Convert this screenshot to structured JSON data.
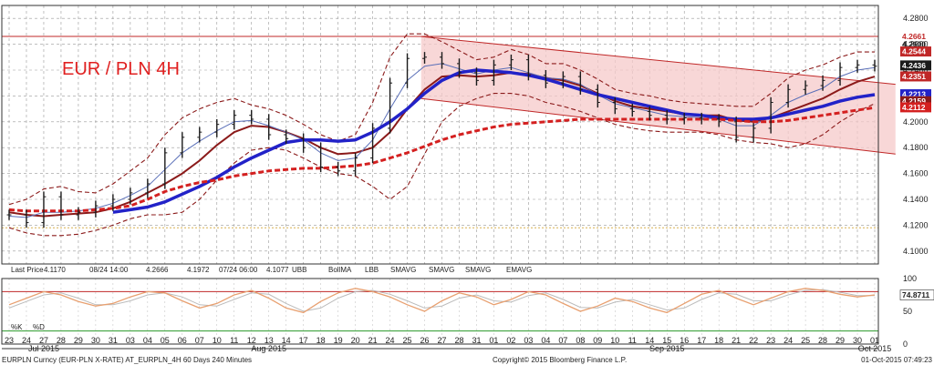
{
  "chart_data": {
    "type": "line",
    "title": "EUR / PLN 4H",
    "colors": {
      "title": "#e02020",
      "price": "#1a1a1a",
      "bb_band": "#8b1a1a",
      "bb_ma": "#8b1a1a",
      "smavg_thin": "#5a6fb8",
      "smavg_thick": "#2222c8",
      "emavg": "#d42020",
      "channel_fill": "#f6caca",
      "channel_line": "#c02828",
      "resistance": "#c02828",
      "support": "#d8b050",
      "stoch": "#e8a070"
    },
    "y_axis": {
      "min": 4.09,
      "max": 4.29,
      "ticks": [
        "4.2800",
        "4.2600",
        "4.2400",
        "4.2200",
        "4.2000",
        "4.1800",
        "4.1600",
        "4.1400",
        "4.1200",
        "4.1000"
      ]
    },
    "price_labels": [
      {
        "text": "4.2661",
        "value": 4.2661,
        "bg": "#ffffff",
        "fg": "#c02828"
      },
      {
        "text": "4.2600",
        "value": 4.26,
        "bg": "#ffffff",
        "fg": "#222222"
      },
      {
        "text": "4.2544",
        "value": 4.2544,
        "bg": "#c02828",
        "fg": "#ffffff"
      },
      {
        "text": "4.2436",
        "value": 4.2436,
        "bg": "#1a1a1a",
        "fg": "#ffffff"
      },
      {
        "text": "4.2351",
        "value": 4.2351,
        "bg": "#c02828",
        "fg": "#ffffff"
      },
      {
        "text": "4.2213",
        "value": 4.2213,
        "bg": "#2222c8",
        "fg": "#ffffff"
      },
      {
        "text": "4.2159",
        "value": 4.2159,
        "bg": "#8b1a1a",
        "fg": "#ffffff"
      },
      {
        "text": "4.2112",
        "value": 4.2112,
        "bg": "#d42020",
        "fg": "#ffffff"
      }
    ],
    "horizontal_lines": [
      {
        "name": "resistance",
        "value": 4.2661
      },
      {
        "name": "support",
        "value": 4.118
      }
    ],
    "x_labels": [
      "23",
      "24",
      "27",
      "28",
      "29",
      "30",
      "31",
      "03",
      "04",
      "05",
      "06",
      "07",
      "10",
      "11",
      "12",
      "13",
      "14",
      "17",
      "18",
      "19",
      "20",
      "21",
      "24",
      "25",
      "26",
      "27",
      "28",
      "31",
      "01",
      "02",
      "03",
      "04",
      "07",
      "08",
      "09",
      "10",
      "11",
      "14",
      "15",
      "16",
      "17",
      "18",
      "21",
      "22",
      "23",
      "24",
      "25",
      "28",
      "29",
      "30",
      "01"
    ],
    "month_labels": [
      {
        "text": "Jul 2015",
        "index": 2
      },
      {
        "text": "Aug 2015",
        "index": 15
      },
      {
        "text": "Sep 2015",
        "index": 38
      },
      {
        "text": "Oct 2015",
        "index": 50
      }
    ],
    "channel": {
      "upper_start": {
        "x": 23.8,
        "y": 4.266
      },
      "upper_end": {
        "x": 51.2,
        "y": 4.229
      },
      "lower_start": {
        "x": 23.8,
        "y": 4.218
      },
      "lower_end": {
        "x": 51.2,
        "y": 4.175
      }
    },
    "series": [
      {
        "name": "Last Price",
        "values": [
          4.128,
          4.122,
          4.142,
          4.128,
          4.13,
          4.135,
          4.14,
          4.145,
          4.152,
          4.176,
          4.188,
          4.192,
          4.198,
          4.205,
          4.202,
          4.19,
          4.187,
          4.18,
          4.165,
          4.162,
          4.172,
          4.195,
          4.23,
          4.249,
          4.25,
          4.245,
          4.238,
          4.232,
          4.244,
          4.248,
          4.236,
          4.23,
          4.235,
          4.225,
          4.215,
          4.21,
          4.208,
          4.205,
          4.202,
          4.203,
          4.202,
          4.2,
          4.188,
          4.195,
          4.215,
          4.225,
          4.228,
          4.232,
          4.242,
          4.244,
          4.243
        ]
      },
      {
        "name": "BollMA",
        "values": [
          4.13,
          4.128,
          4.127,
          4.128,
          4.129,
          4.13,
          4.133,
          4.138,
          4.145,
          4.152,
          4.16,
          4.17,
          4.182,
          4.192,
          4.197,
          4.196,
          4.192,
          4.187,
          4.18,
          4.175,
          4.176,
          4.18,
          4.192,
          4.21,
          4.225,
          4.235,
          4.236,
          4.235,
          4.236,
          4.238,
          4.237,
          4.234,
          4.232,
          4.228,
          4.222,
          4.216,
          4.212,
          4.21,
          4.208,
          4.206,
          4.205,
          4.205,
          4.201,
          4.2,
          4.203,
          4.208,
          4.213,
          4.218,
          4.225,
          4.231,
          4.235
        ]
      },
      {
        "name": "UBB",
        "values": [
          4.136,
          4.14,
          4.148,
          4.15,
          4.146,
          4.145,
          4.152,
          4.162,
          4.172,
          4.19,
          4.203,
          4.21,
          4.215,
          4.218,
          4.213,
          4.21,
          4.205,
          4.198,
          4.19,
          4.185,
          4.19,
          4.215,
          4.25,
          4.268,
          4.268,
          4.262,
          4.255,
          4.248,
          4.25,
          4.256,
          4.252,
          4.245,
          4.245,
          4.24,
          4.233,
          4.225,
          4.222,
          4.22,
          4.217,
          4.215,
          4.214,
          4.213,
          4.212,
          4.212,
          4.222,
          4.234,
          4.24,
          4.244,
          4.25,
          4.254,
          4.254
        ]
      },
      {
        "name": "LBB",
        "values": [
          4.118,
          4.114,
          4.112,
          4.112,
          4.113,
          4.116,
          4.12,
          4.125,
          4.128,
          4.128,
          4.13,
          4.14,
          4.155,
          4.168,
          4.178,
          4.18,
          4.178,
          4.172,
          4.165,
          4.16,
          4.158,
          4.15,
          4.14,
          4.15,
          4.175,
          4.2,
          4.212,
          4.218,
          4.222,
          4.222,
          4.22,
          4.215,
          4.212,
          4.208,
          4.203,
          4.198,
          4.195,
          4.193,
          4.192,
          4.192,
          4.192,
          4.19,
          4.186,
          4.184,
          4.183,
          4.18,
          4.183,
          4.19,
          4.2,
          4.208,
          4.214
        ]
      },
      {
        "name": "SMAVG 1",
        "values": [
          4.127,
          4.126,
          4.13,
          4.13,
          4.131,
          4.133,
          4.137,
          4.143,
          4.15,
          4.163,
          4.176,
          4.185,
          4.193,
          4.2,
          4.201,
          4.197,
          4.192,
          4.186,
          4.176,
          4.17,
          4.172,
          4.186,
          4.21,
          4.232,
          4.243,
          4.245,
          4.241,
          4.237,
          4.24,
          4.242,
          4.238,
          4.234,
          4.233,
          4.229,
          4.221,
          4.214,
          4.211,
          4.208,
          4.205,
          4.204,
          4.203,
          4.202,
          4.197,
          4.197,
          4.205,
          4.215,
          4.221,
          4.226,
          4.235,
          4.24,
          4.242
        ]
      },
      {
        "name": "SMAVG 2",
        "values": [
          null,
          null,
          null,
          null,
          null,
          null,
          4.13,
          4.132,
          4.134,
          4.138,
          4.144,
          4.15,
          4.157,
          4.165,
          4.172,
          4.178,
          4.184,
          4.186,
          4.186,
          4.185,
          4.186,
          4.192,
          4.2,
          4.21,
          4.222,
          4.232,
          4.238,
          4.24,
          4.239,
          4.238,
          4.236,
          4.233,
          4.229,
          4.225,
          4.221,
          4.218,
          4.215,
          4.212,
          4.209,
          4.206,
          4.205,
          4.203,
          4.202,
          4.202,
          4.203,
          4.206,
          4.209,
          4.212,
          4.216,
          4.219,
          4.221
        ]
      },
      {
        "name": "EMAVG",
        "values": [
          4.132,
          4.131,
          4.131,
          4.131,
          4.131,
          4.132,
          4.133,
          4.135,
          4.14,
          4.146,
          4.15,
          4.153,
          4.155,
          4.158,
          4.16,
          4.162,
          4.163,
          4.164,
          4.164,
          4.165,
          4.166,
          4.168,
          4.172,
          4.176,
          4.181,
          4.186,
          4.19,
          4.193,
          4.196,
          4.198,
          4.199,
          4.2,
          4.201,
          4.202,
          4.202,
          4.202,
          4.202,
          4.202,
          4.202,
          4.202,
          4.202,
          4.202,
          4.201,
          4.2,
          4.2,
          4.201,
          4.203,
          4.205,
          4.207,
          4.209,
          4.211
        ]
      }
    ],
    "legend": [
      "Last Price",
      "4.1170",
      "08/24 14:00",
      "4.2666",
      "4.1972",
      "07/24 06:00",
      "4.1077",
      "UBB",
      "BollMA",
      "LBB",
      "SMAVG",
      "SMAVG",
      "SMAVG",
      "EMAVG"
    ],
    "stochastic": {
      "y_ticks": [
        "100",
        "50",
        "0"
      ],
      "min": 0,
      "max": 100,
      "levels": [
        80,
        20
      ],
      "current_label": "74.8711",
      "legend": [
        "%K",
        "%D"
      ],
      "k": [
        60,
        70,
        80,
        75,
        65,
        58,
        62,
        72,
        80,
        78,
        66,
        55,
        62,
        75,
        82,
        70,
        55,
        48,
        65,
        78,
        85,
        80,
        72,
        60,
        50,
        66,
        78,
        72,
        60,
        68,
        80,
        75,
        62,
        50,
        58,
        70,
        65,
        55,
        48,
        62,
        76,
        82,
        70,
        60,
        70,
        80,
        85,
        82,
        76,
        72,
        75
      ],
      "d": [
        55,
        65,
        75,
        78,
        70,
        60,
        60,
        66,
        75,
        78,
        72,
        60,
        58,
        68,
        78,
        76,
        62,
        50,
        55,
        70,
        80,
        82,
        76,
        66,
        55,
        58,
        70,
        75,
        66,
        64,
        74,
        78,
        68,
        56,
        55,
        64,
        68,
        60,
        52,
        55,
        68,
        78,
        76,
        66,
        66,
        75,
        82,
        83,
        79,
        74,
        74
      ]
    },
    "footer": {
      "left": "EURPLN Curncy (EUR-PLN X-RATE) AT_EURPLN_4H 60 Days 240 Minutes",
      "center": "Copyright© 2015 Bloomberg Finance L.P.",
      "right": "01-Oct-2015 07:49:23"
    }
  }
}
